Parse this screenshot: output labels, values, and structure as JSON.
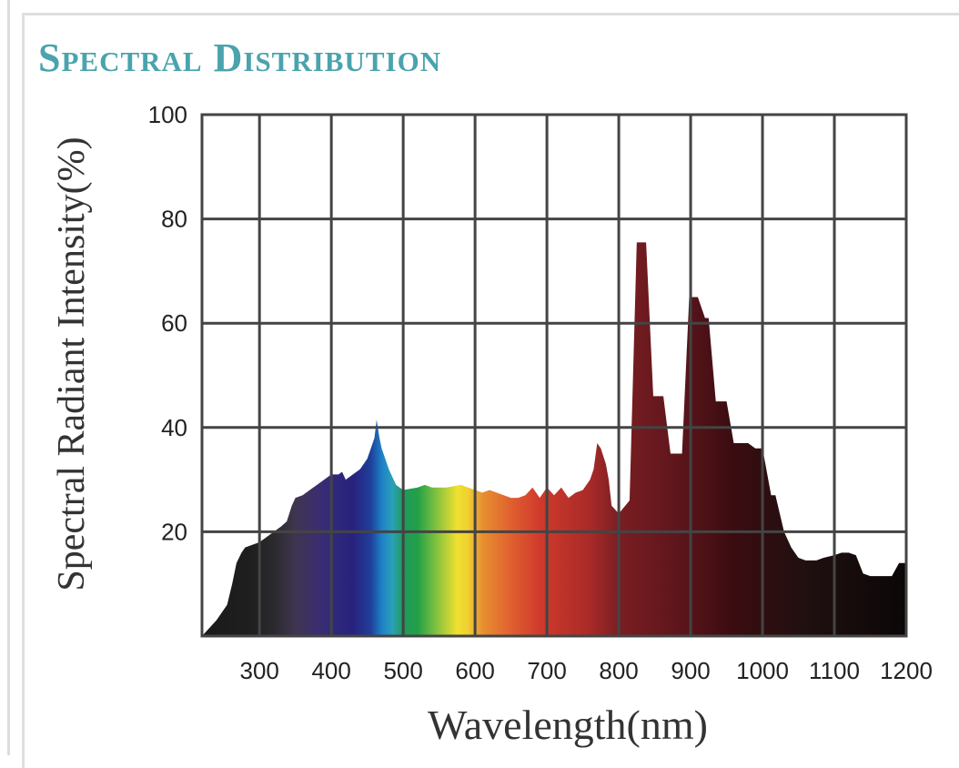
{
  "title": "Spectral Distribution",
  "chart_data": {
    "type": "area",
    "title": "Spectral Distribution",
    "xlabel": "Wavelength(nm)",
    "ylabel": "Spectral Radiant Intensity(%)",
    "xlim": [
      220,
      1200
    ],
    "ylim": [
      0,
      100
    ],
    "x_ticks": [
      300,
      400,
      500,
      600,
      700,
      800,
      900,
      1000,
      1100,
      1200
    ],
    "y_ticks": [
      20,
      40,
      60,
      80,
      100
    ],
    "y_grid": [
      20,
      40,
      60,
      80,
      100
    ],
    "x_grid": [
      300,
      400,
      500,
      600,
      700,
      800,
      900,
      1000,
      1100,
      1200
    ],
    "grid": true,
    "series": [
      {
        "x": [
          220,
          240,
          255,
          262,
          268,
          275,
          280,
          290,
          300,
          310,
          320,
          330,
          338,
          345,
          350,
          360,
          370,
          380,
          390,
          400,
          410,
          415,
          420,
          430,
          440,
          445,
          450,
          455,
          460,
          463,
          467,
          470,
          475,
          480,
          485,
          490,
          495,
          500,
          520,
          530,
          540,
          560,
          580,
          600,
          610,
          620,
          630,
          640,
          650,
          660,
          670,
          680,
          690,
          700,
          710,
          720,
          730,
          740,
          750,
          760,
          765,
          770,
          775,
          782,
          786,
          790,
          800,
          815,
          825,
          828,
          838,
          848,
          852,
          862,
          872,
          878,
          888,
          898,
          903,
          910,
          920,
          925,
          935,
          945,
          950,
          960,
          975,
          980,
          990,
          1000,
          1012,
          1018,
          1030,
          1040,
          1045,
          1050,
          1060,
          1075,
          1085,
          1100,
          1110,
          1120,
          1130,
          1140,
          1150,
          1160,
          1165,
          1172,
          1180,
          1190,
          1195,
          1200
        ],
        "y": [
          0,
          3,
          6,
          10,
          14,
          16,
          17,
          17.5,
          18,
          19,
          20,
          21,
          22,
          25,
          26.5,
          27,
          28,
          29,
          30,
          31,
          31,
          31.5,
          30,
          31,
          32,
          33,
          34,
          36,
          38,
          41.5,
          38,
          36,
          34,
          32,
          30.5,
          29,
          28.5,
          28,
          28.5,
          29,
          28.5,
          28.5,
          29,
          28,
          27.5,
          28,
          27.5,
          27,
          26.5,
          26.5,
          27,
          28.5,
          26.5,
          28.5,
          27,
          28.5,
          26.5,
          27.5,
          28,
          30,
          32,
          37,
          36,
          33,
          30,
          25,
          23.5,
          26,
          75.5,
          75.5,
          75.5,
          46,
          46,
          46,
          35,
          35,
          35,
          65,
          65,
          65,
          61,
          61,
          45,
          45,
          45,
          37,
          37,
          37,
          36,
          36,
          27,
          27,
          20,
          17,
          16,
          15,
          14.5,
          14.5,
          15,
          15.5,
          16,
          16,
          15.5,
          12,
          11.5,
          11.5,
          11.5,
          11.5,
          11.5,
          14,
          14,
          14
        ]
      }
    ],
    "colors": {
      "spectrum_stops": [
        {
          "nm": 220,
          "color": "#1a1a1a"
        },
        {
          "nm": 290,
          "color": "#1f1f1f"
        },
        {
          "nm": 320,
          "color": "#2b2a2e"
        },
        {
          "nm": 350,
          "color": "#3f3550"
        },
        {
          "nm": 380,
          "color": "#3c2e6e"
        },
        {
          "nm": 400,
          "color": "#302a7a"
        },
        {
          "nm": 430,
          "color": "#28227e"
        },
        {
          "nm": 455,
          "color": "#1f3f9a"
        },
        {
          "nm": 470,
          "color": "#1e80c8"
        },
        {
          "nm": 485,
          "color": "#2aa0b8"
        },
        {
          "nm": 500,
          "color": "#1f9a5a"
        },
        {
          "nm": 520,
          "color": "#22a048"
        },
        {
          "nm": 545,
          "color": "#7ec040"
        },
        {
          "nm": 575,
          "color": "#f0e030"
        },
        {
          "nm": 590,
          "color": "#f0d030"
        },
        {
          "nm": 610,
          "color": "#e89030"
        },
        {
          "nm": 650,
          "color": "#e06030"
        },
        {
          "nm": 690,
          "color": "#d03a2c"
        },
        {
          "nm": 760,
          "color": "#a82a28"
        },
        {
          "nm": 800,
          "color": "#7a1e22"
        },
        {
          "nm": 880,
          "color": "#5e161c"
        },
        {
          "nm": 960,
          "color": "#3a0c10"
        },
        {
          "nm": 1060,
          "color": "#201010"
        },
        {
          "nm": 1200,
          "color": "#0b0707"
        }
      ],
      "grid": "#444444",
      "title": "#4aa3ad"
    }
  }
}
